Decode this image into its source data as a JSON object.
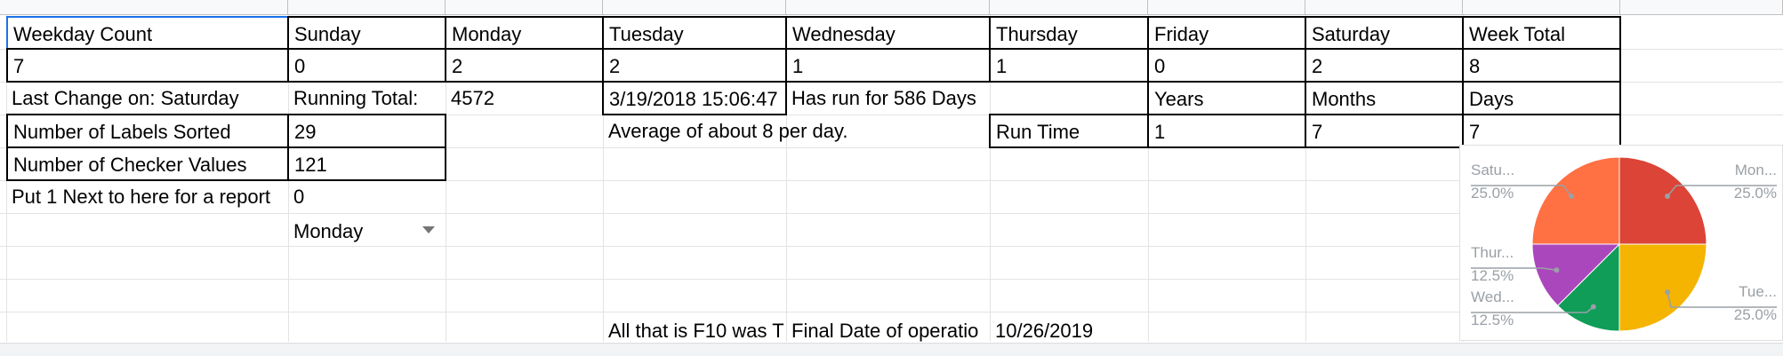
{
  "rows": {
    "r1": {
      "a": "Weekday Count",
      "b": "Sunday",
      "c": "Monday",
      "d": "Tuesday",
      "e": "Wednesday",
      "f": "Thursday",
      "g": "Friday",
      "h": "Saturday",
      "i": "Week Total"
    },
    "r2": {
      "a": "7",
      "b": "0",
      "c": "2",
      "d": "2",
      "e": "1",
      "f": "1",
      "g": "0",
      "h": "2",
      "i": "8"
    },
    "r3": {
      "a": "Last Change on: Saturday",
      "b": "Running Total:",
      "c": "4572",
      "d": "3/19/2018 15:06:47",
      "e": "Has run for 586 Days",
      "g": "Years",
      "h": "Months",
      "i": "Days"
    },
    "r4": {
      "a": "Number of Labels Sorted",
      "b": "29",
      "d": "Average of about 8 per day.",
      "f": "Run Time",
      "g": "1",
      "h": "7",
      "i": "7"
    },
    "r5": {
      "a": "Number of Checker Values",
      "b": "121"
    },
    "r6": {
      "a": "Put 1 Next to here for a report",
      "b": "0"
    },
    "r7": {
      "b": "Monday"
    },
    "r10": {
      "d": "All that is F10 was T",
      "e": "Final Date of operatio",
      "f": "10/26/2019"
    }
  },
  "chart_data": {
    "type": "pie",
    "categories": [
      "Monday",
      "Tuesday",
      "Wednesday",
      "Thursday",
      "Saturday"
    ],
    "values": [
      2,
      2,
      1,
      1,
      2
    ],
    "colors": [
      "#db4437",
      "#f4b400",
      "#0f9d58",
      "#ab47bc",
      "#ff7043"
    ],
    "labels": [
      {
        "name": "Mon...",
        "pct": "25.0%"
      },
      {
        "name": "Tue...",
        "pct": "25.0%"
      },
      {
        "name": "Wed...",
        "pct": "12.5%"
      },
      {
        "name": "Thur...",
        "pct": "12.5%"
      },
      {
        "name": "Satu...",
        "pct": "25.0%"
      }
    ]
  }
}
